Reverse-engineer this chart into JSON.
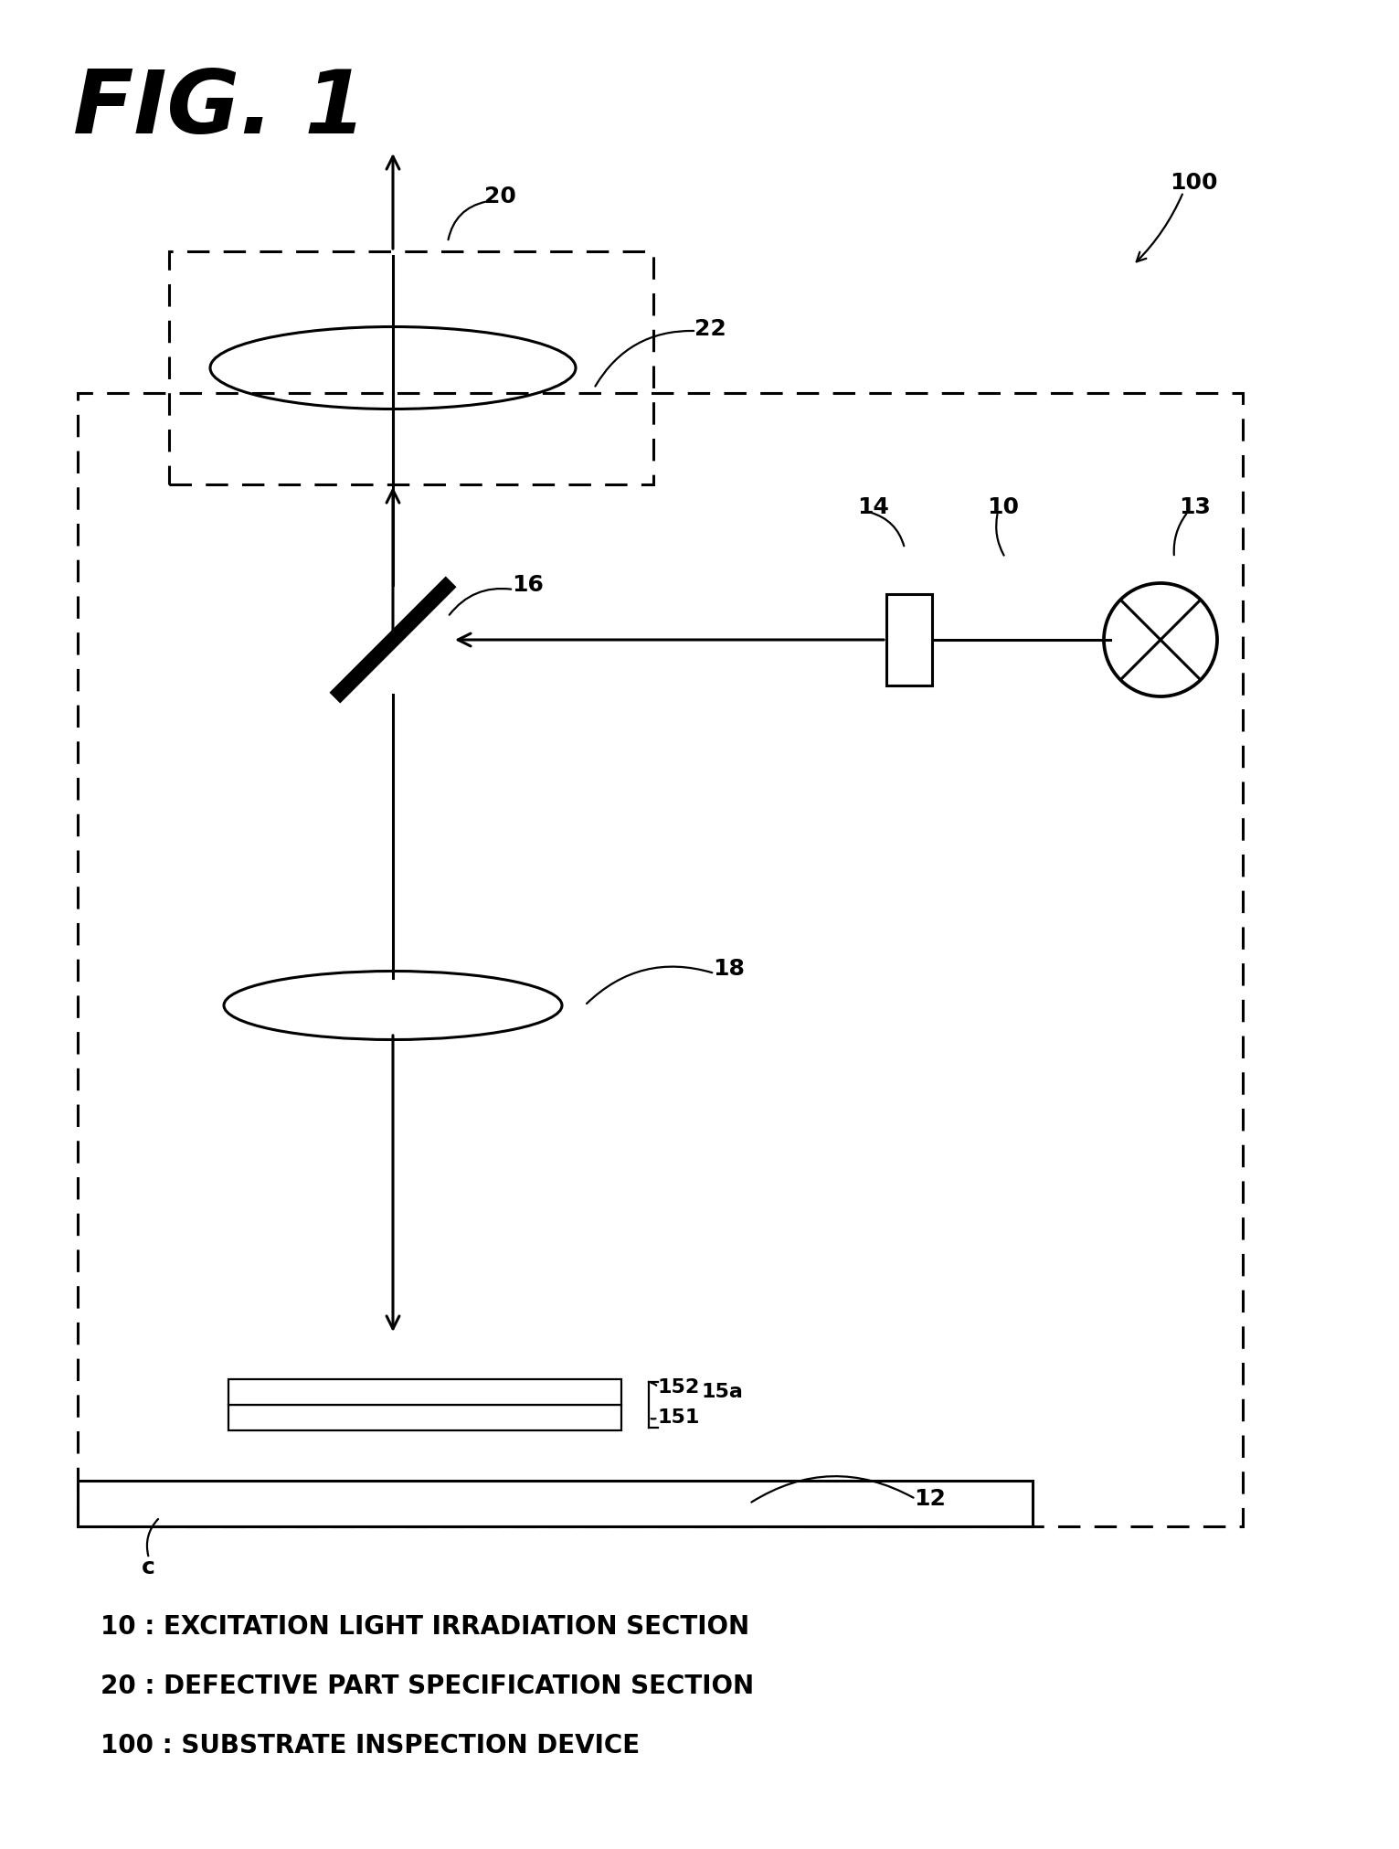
{
  "fig_label": "FIG. 1",
  "bg_color": "#ffffff",
  "line_color": "#000000",
  "legend_lines": [
    "10 : EXCITATION LIGHT IRRADIATION SECTION",
    "20 : DEFECTIVE PART SPECIFICATION SECTION",
    "100 : SUBSTRATE INSPECTION DEVICE"
  ],
  "lw": 2.2,
  "lw_thin": 1.6,
  "label_fs": 18,
  "legend_fs": 20
}
